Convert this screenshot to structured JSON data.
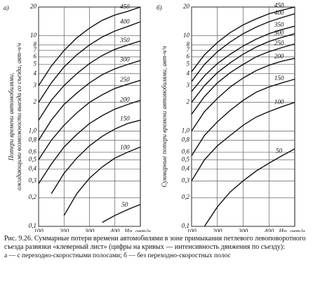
{
  "chart_data": [
    {
      "type": "line",
      "panel": "а)",
      "ylabel": [
        "Потери времени автомобилями,",
        "ожидающими возможности выезда со съезда, авт-ч/ч"
      ],
      "xlabel": "Ип, авт/ч",
      "yscale": "log",
      "grid": true,
      "color": "#111",
      "x": [
        100,
        150,
        200,
        250,
        300,
        350,
        400,
        450,
        500
      ],
      "xlim": [
        100,
        500
      ],
      "xticks": [
        100,
        200,
        300,
        400
      ],
      "ylim": [
        0.1,
        20
      ],
      "yticks": [
        {
          "value": 0.1,
          "label": "0,1"
        },
        {
          "value": 0.2,
          "label": "0,2"
        },
        {
          "value": 0.3,
          "label": "0,3"
        },
        {
          "value": 0.4,
          "label": "0,4"
        },
        {
          "value": 0.5,
          "label": "0,5"
        },
        {
          "value": 0.6,
          "label": "0,6"
        },
        {
          "value": 0.8,
          "label": "0,8"
        },
        {
          "value": 1,
          "label": "1,0"
        },
        2,
        3,
        4,
        5,
        6,
        7,
        8,
        10,
        20
      ],
      "series": [
        {
          "name": "50",
          "values": [
            null,
            null,
            null,
            null,
            null,
            0.11,
            0.13,
            0.15,
            0.17
          ]
        },
        {
          "name": "100",
          "values": [
            null,
            null,
            0.13,
            0.22,
            0.32,
            0.42,
            0.52,
            0.6,
            0.68
          ]
        },
        {
          "name": "150",
          "values": [
            null,
            0.22,
            0.36,
            0.52,
            0.7,
            0.88,
            1.05,
            1.2,
            1.3
          ]
        },
        {
          "name": "200",
          "values": [
            0.28,
            0.45,
            0.68,
            0.92,
            1.2,
            1.45,
            1.7,
            1.9,
            2.1
          ]
        },
        {
          "name": "250",
          "values": [
            0.5,
            0.8,
            1.15,
            1.55,
            2.0,
            2.4,
            2.8,
            3.1,
            3.4
          ]
        },
        {
          "name": "300",
          "values": [
            0.8,
            1.3,
            1.9,
            2.5,
            3.2,
            3.9,
            4.5,
            5.0,
            5.5
          ]
        },
        {
          "name": "350",
          "values": [
            1.3,
            2.1,
            3.0,
            4.0,
            5.1,
            6.2,
            7.2,
            8.0,
            8.8
          ]
        },
        {
          "name": "400",
          "values": [
            2.0,
            3.2,
            4.7,
            6.3,
            8.0,
            9.7,
            11.2,
            12.5,
            14
          ]
        },
        {
          "name": "450",
          "values": [
            3.0,
            4.8,
            7.0,
            9.5,
            12,
            14.5,
            16.5,
            18,
            20
          ]
        }
      ]
    },
    {
      "type": "line",
      "panel": "б)",
      "ylabel": [
        "Суммарные потери времени автомобилями, авт-ч/ч"
      ],
      "xlabel": "Ип, авт/ч",
      "yscale": "log",
      "grid": true,
      "color": "#111",
      "x": [
        100,
        150,
        200,
        250,
        300,
        350,
        400,
        450,
        500
      ],
      "xlim": [
        100,
        500
      ],
      "xticks": [
        100,
        200,
        300,
        400
      ],
      "ylim": [
        0.1,
        20
      ],
      "yticks": [
        {
          "value": 0.1,
          "label": "0,1"
        },
        {
          "value": 0.2,
          "label": "0,2"
        },
        {
          "value": 0.3,
          "label": "0,3"
        },
        {
          "value": 0.4,
          "label": "0,4"
        },
        {
          "value": 0.5,
          "label": "0,5"
        },
        {
          "value": 0.6,
          "label": "0,6"
        },
        {
          "value": 0.8,
          "label": "0,8"
        },
        {
          "value": 1,
          "label": "1,0"
        },
        2,
        3,
        4,
        5,
        6,
        7,
        8,
        10,
        20
      ],
      "series": [
        {
          "name": "50",
          "values": [
            null,
            0.1,
            0.16,
            0.23,
            0.3,
            0.38,
            0.46,
            0.55,
            0.65
          ]
        },
        {
          "name": "100",
          "values": [
            0.3,
            0.5,
            0.7,
            0.9,
            1.15,
            1.4,
            1.6,
            1.8,
            2.0
          ]
        },
        {
          "name": "150",
          "values": [
            0.55,
            0.9,
            1.25,
            1.65,
            2.1,
            2.55,
            2.9,
            3.2,
            3.5
          ]
        },
        {
          "name": "200",
          "values": [
            1.0,
            1.6,
            2.2,
            2.9,
            3.6,
            4.3,
            4.9,
            5.4,
            5.8
          ]
        },
        {
          "name": "250",
          "values": [
            1.5,
            2.3,
            3.2,
            4.1,
            5.0,
            6.0,
            6.8,
            7.5,
            8.2
          ]
        },
        {
          "name": "300",
          "values": [
            2.0,
            3.0,
            4.1,
            5.2,
            6.4,
            7.6,
            8.7,
            9.6,
            10.5
          ]
        },
        {
          "name": "350",
          "values": [
            2.6,
            3.8,
            5.1,
            6.4,
            7.8,
            9.2,
            10.5,
            11.6,
            12.6
          ]
        },
        {
          "name": "400",
          "values": [
            3.3,
            5.0,
            6.8,
            8.6,
            10.5,
            12.3,
            14,
            15.5,
            17
          ]
        },
        {
          "name": "450",
          "values": [
            4.2,
            6.3,
            8.5,
            10.8,
            13,
            15,
            17,
            18.5,
            20
          ]
        }
      ]
    }
  ],
  "caption": [
    "Рис. 9.26. Суммарные потери времени автомобилями в зоне примыкания петлевого левоповоротного съезда развязки «клеверный лист» (цифры на кривых — интенсивность движения по съезду):",
    "а — с переходно-скоростными полосами; б — без переходно-скоростных полос"
  ]
}
